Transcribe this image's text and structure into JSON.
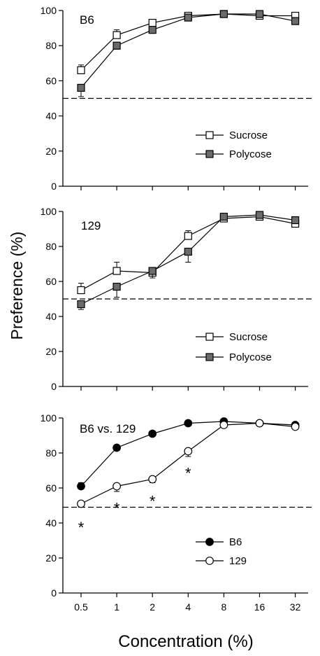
{
  "figure": {
    "ylabel": "Preference (%)",
    "xlabel": "Concentration (%)"
  },
  "chart_data": [
    {
      "type": "line",
      "title": "B6",
      "categories": [
        "0.5",
        "1",
        "2",
        "4",
        "8",
        "16",
        "32"
      ],
      "ylim": [
        0,
        100
      ],
      "yticks": [
        0,
        20,
        40,
        60,
        80,
        100
      ],
      "reference_line": 50,
      "legend_position": "lower-right",
      "series": [
        {
          "name": "Sucrose",
          "marker": "open-square",
          "values": [
            66,
            86,
            93,
            97,
            98,
            97,
            97
          ],
          "errors": [
            3,
            3,
            2,
            2,
            1,
            1,
            2
          ]
        },
        {
          "name": "Polycose",
          "marker": "filled-square",
          "values": [
            56,
            80,
            89,
            96,
            98,
            98,
            94
          ],
          "errors": [
            5,
            2,
            2,
            2,
            1,
            2,
            2
          ]
        }
      ]
    },
    {
      "type": "line",
      "title": "129",
      "categories": [
        "0.5",
        "1",
        "2",
        "4",
        "8",
        "16",
        "32"
      ],
      "ylim": [
        0,
        100
      ],
      "yticks": [
        0,
        20,
        40,
        60,
        80,
        100
      ],
      "reference_line": 50,
      "legend_position": "lower-right",
      "series": [
        {
          "name": "Sucrose",
          "marker": "open-square",
          "values": [
            55,
            66,
            65,
            86,
            96,
            97,
            93
          ],
          "errors": [
            4,
            5,
            3,
            3,
            1,
            2,
            2
          ]
        },
        {
          "name": "Polycose",
          "marker": "filled-square",
          "values": [
            47,
            57,
            66,
            77,
            97,
            98,
            95
          ],
          "errors": [
            3,
            6,
            4,
            6,
            2,
            2,
            2
          ]
        }
      ]
    },
    {
      "type": "line",
      "title": "B6 vs. 129",
      "categories": [
        "0.5",
        "1",
        "2",
        "4",
        "8",
        "16",
        "32"
      ],
      "ylim": [
        0,
        100
      ],
      "yticks": [
        0,
        20,
        40,
        60,
        80,
        100
      ],
      "reference_line": 49,
      "legend_position": "lower-right",
      "series": [
        {
          "name": "B6",
          "marker": "filled-circle",
          "values": [
            61,
            83,
            91,
            97,
            98,
            97,
            96
          ],
          "errors": [
            2,
            1,
            1,
            1,
            1,
            1,
            1
          ]
        },
        {
          "name": "129",
          "marker": "open-circle",
          "values": [
            51,
            61,
            65,
            81,
            96,
            97,
            95
          ],
          "errors": [
            2,
            3,
            2,
            3,
            1,
            1,
            1
          ]
        }
      ],
      "annotations": [
        {
          "text": "*",
          "category": "0.5",
          "y": 40
        },
        {
          "text": "*",
          "category": "1",
          "y": 51
        },
        {
          "text": "*",
          "category": "2",
          "y": 55
        },
        {
          "text": "*",
          "category": "4",
          "y": 71
        }
      ]
    }
  ]
}
